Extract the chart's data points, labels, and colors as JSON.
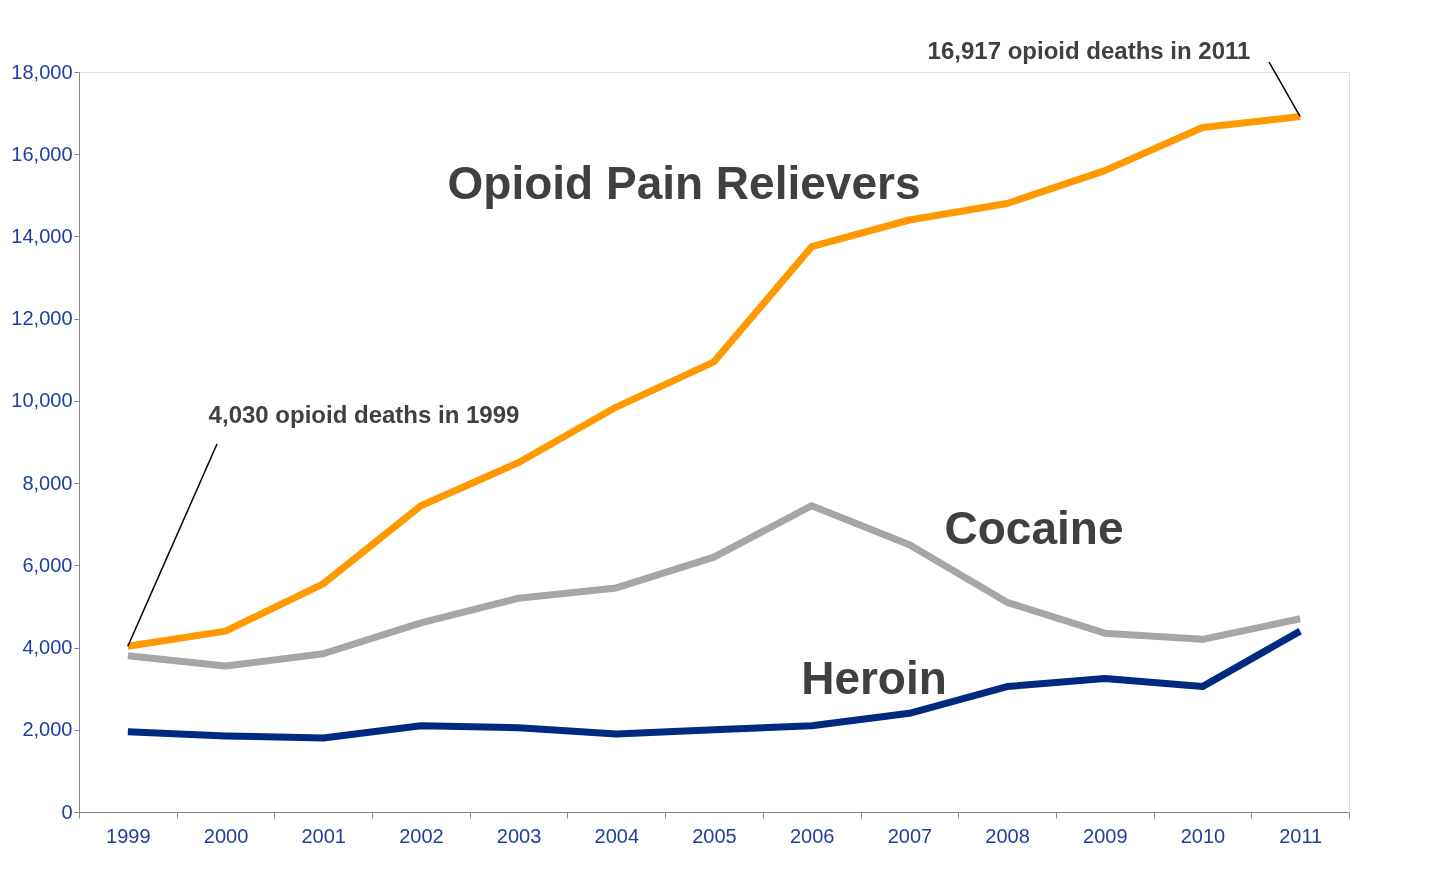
{
  "chart_data": {
    "type": "line",
    "categories": [
      "1999",
      "2000",
      "2001",
      "2002",
      "2003",
      "2004",
      "2005",
      "2006",
      "2007",
      "2008",
      "2009",
      "2010",
      "2011"
    ],
    "series": [
      {
        "name": "Opioid Pain Relievers",
        "color": "#ff9900",
        "values": [
          4030,
          4400,
          5550,
          7450,
          8500,
          9850,
          10950,
          13750,
          14400,
          14800,
          15600,
          16650,
          16917
        ]
      },
      {
        "name": "Cocaine",
        "color": "#a6a6a6",
        "values": [
          3800,
          3550,
          3850,
          4600,
          5200,
          5450,
          6200,
          7450,
          6500,
          5100,
          4350,
          4200,
          4700
        ]
      },
      {
        "name": "Heroin",
        "color": "#002a80",
        "values": [
          1950,
          1850,
          1800,
          2100,
          2050,
          1900,
          2000,
          2100,
          2400,
          3050,
          3250,
          3050,
          4400
        ]
      }
    ],
    "ylim": [
      0,
      18000
    ],
    "yticks": [
      0,
      {
        "value": 2000,
        "label": "2,000"
      },
      {
        "value": 4000,
        "label": "4,000"
      },
      {
        "value": 6000,
        "label": "6,000"
      },
      {
        "value": 8000,
        "label": "8,000"
      },
      {
        "value": 10000,
        "label": "10,000"
      },
      {
        "value": 12000,
        "label": "12,000"
      },
      {
        "value": 14000,
        "label": "14,000"
      },
      {
        "value": 16000,
        "label": "16,000"
      },
      {
        "value": 18000,
        "label": "18,000"
      }
    ],
    "grid": false,
    "marker": "none",
    "line_style": "solid",
    "annotations": [
      {
        "text": "4,030 opioid deaths in 1999",
        "x": "1999",
        "y": 4030
      },
      {
        "text": "16,917 opioid deaths in 2011",
        "x": "2011",
        "y": 16917
      }
    ]
  }
}
